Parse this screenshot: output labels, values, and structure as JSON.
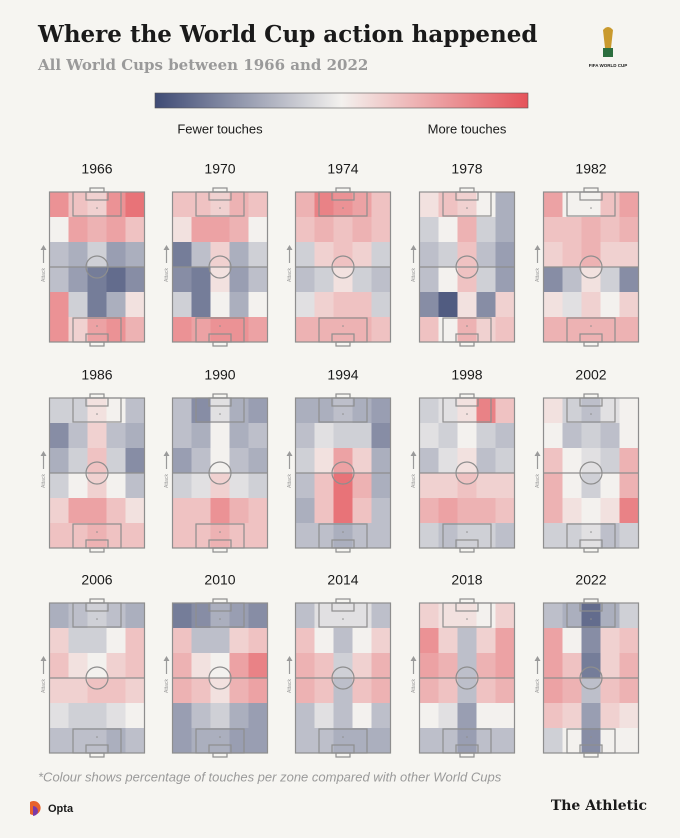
{
  "chart_data": {
    "type": "heatmap",
    "title": "Where the World Cup action happened",
    "subtitle": "All World Cups between 1966 and 2022",
    "logo_text": "FIFA WORLD CUP",
    "legend_low": "Fewer touches",
    "legend_high": "More touches",
    "colorscale": [
      "#3f4b75",
      "#f3f1ee",
      "#e5535a"
    ],
    "vlim": [
      -1,
      1
    ],
    "attack_label": "Attack",
    "footnote": "*Colour shows percentage of touches per zone compared with other World Cups",
    "source": "Opta",
    "brand": "The Athletic",
    "panels": [
      {
        "title": "1966",
        "values": [
          [
            0.6,
            0.3,
            0.2,
            0.6,
            0.8
          ],
          [
            0,
            0.5,
            0.4,
            0.5,
            0.3
          ],
          [
            -0.3,
            -0.4,
            -0.2,
            -0.5,
            -0.4
          ],
          [
            -0.3,
            -0.5,
            -0.7,
            -0.8,
            -0.6
          ],
          [
            0.6,
            -0.2,
            -0.7,
            -0.4,
            0.1
          ],
          [
            0.6,
            0.2,
            0.5,
            0.6,
            0.4
          ]
        ]
      },
      {
        "title": "1970",
        "values": [
          [
            0.3,
            0.3,
            0.2,
            0.4,
            0.3
          ],
          [
            0.1,
            0.5,
            0.5,
            0.4,
            0
          ],
          [
            -0.7,
            -0.3,
            0.2,
            -0.4,
            -0.2
          ],
          [
            -0.6,
            -0.7,
            0.1,
            -0.5,
            -0.3
          ],
          [
            -0.2,
            -0.7,
            0,
            -0.4,
            0
          ],
          [
            0.6,
            0.5,
            0.6,
            0.6,
            0.5
          ]
        ]
      },
      {
        "title": "1974",
        "values": [
          [
            0.4,
            0.7,
            0.6,
            0.5,
            0.3
          ],
          [
            0.3,
            0.4,
            0.3,
            0.4,
            0.3
          ],
          [
            -0.2,
            0.2,
            0.3,
            0.2,
            -0.2
          ],
          [
            -0.3,
            -0.2,
            0.1,
            -0.2,
            -0.3
          ],
          [
            -0.1,
            0.2,
            0.3,
            0.3,
            -0.2
          ],
          [
            0.4,
            0.4,
            0.4,
            0.4,
            0.3
          ]
        ]
      },
      {
        "title": "1978",
        "values": [
          [
            0.1,
            0.3,
            0.2,
            0,
            -0.4
          ],
          [
            -0.2,
            0,
            0.4,
            -0.2,
            -0.4
          ],
          [
            -0.3,
            -0.2,
            0.3,
            -0.3,
            -0.5
          ],
          [
            -0.3,
            0,
            0.3,
            -0.2,
            -0.5
          ],
          [
            -0.6,
            -0.9,
            0.1,
            -0.6,
            0.2
          ],
          [
            0.3,
            0,
            0.4,
            0.2,
            0.3
          ]
        ]
      },
      {
        "title": "1982",
        "values": [
          [
            0.5,
            0,
            0,
            0.3,
            0.5
          ],
          [
            0.3,
            0.3,
            0.4,
            0.3,
            0.4
          ],
          [
            0.2,
            0.3,
            0.4,
            0.2,
            0.2
          ],
          [
            -0.6,
            -0.3,
            0.1,
            -0.2,
            -0.6
          ],
          [
            0.1,
            -0.1,
            0.2,
            0,
            0.2
          ],
          [
            0.4,
            0.4,
            0.4,
            0.4,
            0.4
          ]
        ]
      },
      {
        "title": "1986",
        "values": [
          [
            -0.2,
            -0.2,
            0.1,
            0,
            -0.3
          ],
          [
            -0.6,
            -0.3,
            0.2,
            -0.3,
            -0.4
          ],
          [
            -0.4,
            -0.2,
            0.3,
            -0.2,
            -0.6
          ],
          [
            -0.2,
            0,
            0.2,
            0,
            -0.3
          ],
          [
            0.2,
            0.5,
            0.5,
            0.3,
            0.1
          ],
          [
            0.3,
            0.3,
            0.4,
            0.3,
            0.3
          ]
        ]
      },
      {
        "title": "1990",
        "values": [
          [
            -0.3,
            -0.6,
            -0.1,
            -0.4,
            -0.5
          ],
          [
            -0.3,
            -0.4,
            0,
            -0.4,
            -0.3
          ],
          [
            -0.5,
            -0.3,
            0,
            -0.3,
            -0.4
          ],
          [
            -0.2,
            -0.1,
            0.2,
            -0.1,
            -0.2
          ],
          [
            0.3,
            0.3,
            0.6,
            0.4,
            0.3
          ],
          [
            0.3,
            0.3,
            0.4,
            0.3,
            0.3
          ]
        ]
      },
      {
        "title": "1994",
        "values": [
          [
            -0.4,
            -0.4,
            -0.3,
            -0.4,
            -0.5
          ],
          [
            -0.3,
            -0.1,
            -0.2,
            -0.2,
            -0.6
          ],
          [
            -0.2,
            0.1,
            0.5,
            0.2,
            -0.4
          ],
          [
            -0.3,
            0.3,
            0.8,
            0.4,
            -0.4
          ],
          [
            -0.4,
            0.3,
            0.8,
            0.3,
            -0.3
          ],
          [
            -0.3,
            -0.3,
            -0.4,
            -0.3,
            -0.3
          ]
        ]
      },
      {
        "title": "1998",
        "values": [
          [
            -0.2,
            -0.1,
            0.1,
            0.7,
            0.3
          ],
          [
            -0.1,
            -0.2,
            0,
            -0.2,
            -0.3
          ],
          [
            -0.3,
            -0.1,
            0.1,
            -0.3,
            -0.2
          ],
          [
            0.2,
            0.2,
            0.3,
            0.2,
            0.2
          ],
          [
            0.4,
            0.5,
            0.4,
            0.4,
            0.3
          ],
          [
            -0.2,
            -0.3,
            -0.2,
            -0.2,
            -0.3
          ]
        ]
      },
      {
        "title": "2002",
        "values": [
          [
            0.1,
            -0.2,
            -0.3,
            -0.1,
            0
          ],
          [
            0,
            -0.3,
            -0.2,
            -0.3,
            0
          ],
          [
            0.3,
            0,
            -0.1,
            -0.2,
            0.4
          ],
          [
            0.4,
            0,
            -0.2,
            0,
            0.4
          ],
          [
            0.4,
            0.1,
            0,
            0.1,
            0.7
          ],
          [
            -0.2,
            -0.2,
            -0.1,
            -0.3,
            -0.2
          ]
        ]
      },
      {
        "title": "2006",
        "values": [
          [
            -0.4,
            -0.3,
            -0.2,
            -0.3,
            -0.4
          ],
          [
            0.2,
            -0.2,
            -0.2,
            0,
            0.3
          ],
          [
            0.3,
            0.1,
            0,
            0.2,
            0.3
          ],
          [
            0.2,
            0.2,
            0.3,
            0.3,
            0.2
          ],
          [
            -0.1,
            -0.2,
            -0.2,
            -0.1,
            0
          ],
          [
            -0.3,
            -0.3,
            -0.3,
            -0.4,
            -0.3
          ]
        ]
      },
      {
        "title": "2010",
        "values": [
          [
            -0.7,
            -0.6,
            -0.4,
            -0.5,
            -0.6
          ],
          [
            0.3,
            -0.3,
            -0.3,
            0.2,
            0.3
          ],
          [
            0.4,
            0.1,
            0,
            0.5,
            0.7
          ],
          [
            0.4,
            0.3,
            0.1,
            0.4,
            0.5
          ],
          [
            -0.5,
            -0.3,
            -0.2,
            -0.4,
            -0.5
          ],
          [
            -0.5,
            -0.4,
            -0.4,
            -0.5,
            -0.5
          ]
        ]
      },
      {
        "title": "2014",
        "values": [
          [
            -0.3,
            -0.1,
            -0.1,
            -0.1,
            -0.3
          ],
          [
            0.3,
            0,
            -0.3,
            0,
            0.2
          ],
          [
            0.4,
            0.3,
            -0.2,
            0.2,
            0.4
          ],
          [
            0.4,
            0.3,
            -0.3,
            0.3,
            0.4
          ],
          [
            -0.3,
            -0.1,
            -0.3,
            0,
            -0.3
          ],
          [
            -0.3,
            -0.3,
            -0.4,
            -0.4,
            -0.4
          ]
        ]
      },
      {
        "title": "2018",
        "values": [
          [
            0.2,
            0.1,
            0.1,
            0,
            0.2
          ],
          [
            0.6,
            0.2,
            -0.3,
            0.2,
            0.5
          ],
          [
            0.5,
            0.4,
            -0.3,
            0.4,
            0.5
          ],
          [
            0.4,
            0.3,
            -0.3,
            0.3,
            0.4
          ],
          [
            0,
            -0.1,
            -0.5,
            0,
            0
          ],
          [
            -0.3,
            -0.3,
            -0.5,
            -0.3,
            -0.3
          ]
        ]
      },
      {
        "title": "2022",
        "values": [
          [
            -0.3,
            -0.4,
            -0.8,
            -0.4,
            -0.2
          ],
          [
            0.5,
            0,
            -0.6,
            0.2,
            0.3
          ],
          [
            0.5,
            0.3,
            -0.7,
            0.2,
            0.4
          ],
          [
            0.5,
            0.4,
            -0.3,
            0.3,
            0.4
          ],
          [
            0.3,
            0.2,
            -0.5,
            0.2,
            0.1
          ],
          [
            -0.2,
            0,
            -0.6,
            0,
            0
          ]
        ]
      }
    ]
  }
}
